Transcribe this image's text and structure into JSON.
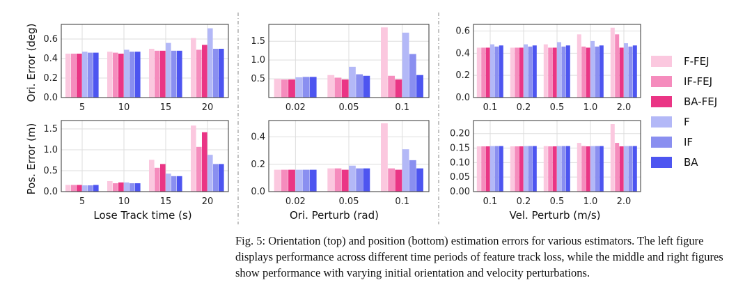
{
  "series_colors": [
    "#fbc8df",
    "#f58cbd",
    "#ea3585",
    "#b3b8f7",
    "#8a8ff0",
    "#4d55f0"
  ],
  "legend": [
    "F-FEJ",
    "IF-FEJ",
    "BA-FEJ",
    "F",
    "IF",
    "BA"
  ],
  "labels": {
    "ylabel_top": "Ori. Error (deg)",
    "ylabel_bottom": "Pos. Error (m)",
    "xlabel_left": "Lose Track time (s)",
    "xlabel_middle": "Ori. Perturb (rad)",
    "xlabel_right": "Vel. Perturb (m/s)"
  },
  "caption": "Fig. 5: Orientation (top) and position (bottom) estimation errors for various estimators. The left figure displays performance across different time periods of feature track loss, while the middle and right figures show performance with varying initial orientation and velocity perturbations.",
  "chart_data": [
    {
      "type": "bar",
      "panel": "top-left",
      "categories": [
        "5",
        "10",
        "15",
        "20"
      ],
      "ylim": [
        0,
        0.75
      ],
      "yticks": [
        "0.0",
        "0.2",
        "0.4",
        "0.6"
      ],
      "ytick_values": [
        0,
        0.2,
        0.4,
        0.6
      ],
      "ylabel": "Ori. Error (deg)",
      "xlabel": "",
      "grid": true,
      "series": [
        {
          "name": "F-FEJ",
          "values": [
            0.45,
            0.47,
            0.5,
            0.61
          ]
        },
        {
          "name": "IF-FEJ",
          "values": [
            0.45,
            0.46,
            0.48,
            0.49
          ]
        },
        {
          "name": "BA-FEJ",
          "values": [
            0.45,
            0.45,
            0.48,
            0.54
          ]
        },
        {
          "name": "F",
          "values": [
            0.47,
            0.49,
            0.56,
            0.71
          ]
        },
        {
          "name": "IF",
          "values": [
            0.46,
            0.47,
            0.48,
            0.5
          ]
        },
        {
          "name": "BA",
          "values": [
            0.46,
            0.47,
            0.48,
            0.5
          ]
        }
      ]
    },
    {
      "type": "bar",
      "panel": "top-middle",
      "categories": [
        "0.02",
        "0.05",
        "0.1"
      ],
      "ylim": [
        0,
        1.95
      ],
      "yticks": [
        "0.5",
        "1.0",
        "1.5"
      ],
      "ytick_values": [
        0.5,
        1.0,
        1.5
      ],
      "ylabel": "",
      "xlabel": "",
      "grid": true,
      "series": [
        {
          "name": "F-FEJ",
          "values": [
            0.5,
            0.6,
            1.87
          ]
        },
        {
          "name": "IF-FEJ",
          "values": [
            0.48,
            0.53,
            0.58
          ]
        },
        {
          "name": "BA-FEJ",
          "values": [
            0.48,
            0.48,
            0.48
          ]
        },
        {
          "name": "F",
          "values": [
            0.54,
            0.82,
            1.73
          ]
        },
        {
          "name": "IF",
          "values": [
            0.55,
            0.62,
            1.16
          ]
        },
        {
          "name": "BA",
          "values": [
            0.55,
            0.58,
            0.6
          ]
        }
      ]
    },
    {
      "type": "bar",
      "panel": "top-right",
      "categories": [
        "0.1",
        "0.2",
        "0.5",
        "1.0",
        "2.0"
      ],
      "ylim": [
        0,
        0.66
      ],
      "yticks": [
        "0.0",
        "0.2",
        "0.4",
        "0.6"
      ],
      "ytick_values": [
        0,
        0.2,
        0.4,
        0.6
      ],
      "ylabel": "",
      "xlabel": "",
      "grid": true,
      "series": [
        {
          "name": "F-FEJ",
          "values": [
            0.45,
            0.45,
            0.48,
            0.57,
            0.63
          ]
        },
        {
          "name": "IF-FEJ",
          "values": [
            0.45,
            0.45,
            0.45,
            0.46,
            0.57
          ]
        },
        {
          "name": "BA-FEJ",
          "values": [
            0.45,
            0.45,
            0.45,
            0.45,
            0.45
          ]
        },
        {
          "name": "F",
          "values": [
            0.48,
            0.48,
            0.5,
            0.51,
            0.49
          ]
        },
        {
          "name": "IF",
          "values": [
            0.46,
            0.46,
            0.46,
            0.46,
            0.46
          ]
        },
        {
          "name": "BA",
          "values": [
            0.47,
            0.47,
            0.47,
            0.47,
            0.47
          ]
        }
      ]
    },
    {
      "type": "bar",
      "panel": "bottom-left",
      "categories": [
        "5",
        "10",
        "15",
        "20"
      ],
      "ylim": [
        0,
        1.7
      ],
      "yticks": [
        "0.0",
        "0.5",
        "1.0",
        "1.5"
      ],
      "ytick_values": [
        0,
        0.5,
        1.0,
        1.5
      ],
      "ylabel": "Pos. Error (m)",
      "xlabel": "Lose Track time (s)",
      "grid": true,
      "series": [
        {
          "name": "F-FEJ",
          "values": [
            0.16,
            0.25,
            0.76,
            1.58
          ]
        },
        {
          "name": "IF-FEJ",
          "values": [
            0.16,
            0.2,
            0.57,
            1.07
          ]
        },
        {
          "name": "BA-FEJ",
          "values": [
            0.16,
            0.22,
            0.66,
            1.42
          ]
        },
        {
          "name": "F",
          "values": [
            0.15,
            0.22,
            0.43,
            0.88
          ]
        },
        {
          "name": "IF",
          "values": [
            0.15,
            0.2,
            0.37,
            0.66
          ]
        },
        {
          "name": "BA",
          "values": [
            0.16,
            0.2,
            0.37,
            0.66
          ]
        }
      ]
    },
    {
      "type": "bar",
      "panel": "bottom-middle",
      "categories": [
        "0.02",
        "0.05",
        "0.1"
      ],
      "ylim": [
        0,
        0.52
      ],
      "yticks": [
        "0.0",
        "0.2",
        "0.4"
      ],
      "ytick_values": [
        0,
        0.2,
        0.4
      ],
      "ylabel": "",
      "xlabel": "Ori. Perturb (rad)",
      "grid": true,
      "series": [
        {
          "name": "F-FEJ",
          "values": [
            0.16,
            0.17,
            0.5
          ]
        },
        {
          "name": "IF-FEJ",
          "values": [
            0.16,
            0.17,
            0.17
          ]
        },
        {
          "name": "BA-FEJ",
          "values": [
            0.16,
            0.16,
            0.16
          ]
        },
        {
          "name": "F",
          "values": [
            0.16,
            0.19,
            0.31
          ]
        },
        {
          "name": "IF",
          "values": [
            0.16,
            0.17,
            0.23
          ]
        },
        {
          "name": "BA",
          "values": [
            0.16,
            0.17,
            0.17
          ]
        }
      ]
    },
    {
      "type": "bar",
      "panel": "bottom-right",
      "categories": [
        "0.1",
        "0.2",
        "0.5",
        "1.0",
        "2.0"
      ],
      "ylim": [
        0,
        0.245
      ],
      "yticks": [
        "0.00",
        "0.05",
        "0.10",
        "0.15",
        "0.20"
      ],
      "ytick_values": [
        0,
        0.05,
        0.1,
        0.15,
        0.2
      ],
      "ylabel": "",
      "xlabel": "Vel. Perturb (m/s)",
      "grid": true,
      "series": [
        {
          "name": "F-FEJ",
          "values": [
            0.156,
            0.156,
            0.157,
            0.168,
            0.233
          ]
        },
        {
          "name": "IF-FEJ",
          "values": [
            0.156,
            0.156,
            0.156,
            0.157,
            0.168
          ]
        },
        {
          "name": "BA-FEJ",
          "values": [
            0.156,
            0.156,
            0.156,
            0.156,
            0.156
          ]
        },
        {
          "name": "F",
          "values": [
            0.157,
            0.157,
            0.157,
            0.157,
            0.157
          ]
        },
        {
          "name": "IF",
          "values": [
            0.157,
            0.157,
            0.157,
            0.157,
            0.157
          ]
        },
        {
          "name": "BA",
          "values": [
            0.157,
            0.157,
            0.157,
            0.157,
            0.157
          ]
        }
      ]
    }
  ]
}
